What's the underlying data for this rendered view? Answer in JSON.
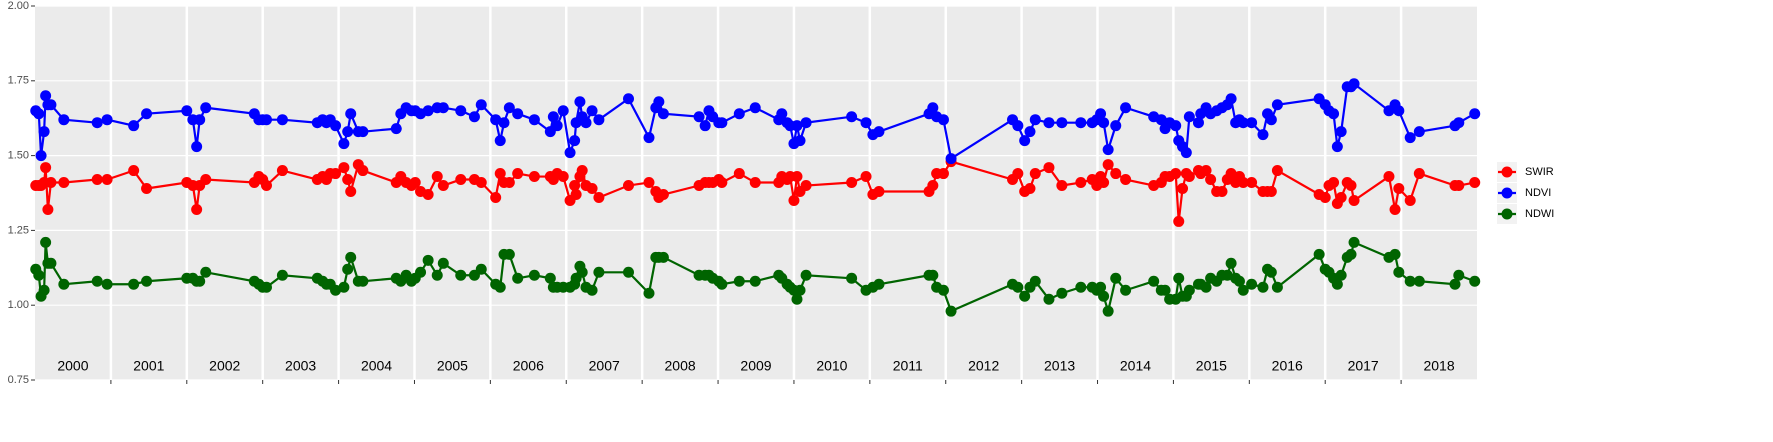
{
  "chart_data": {
    "type": "line",
    "x": [
      2000.01,
      2000.05,
      2000.08,
      2000.12,
      2000.14,
      2000.17,
      2000.21,
      2000.38,
      2000.82,
      2000.95,
      2001.3,
      2001.47,
      2002.0,
      2002.08,
      2002.13,
      2002.17,
      2002.25,
      2002.89,
      2002.95,
      2003.0,
      2003.05,
      2003.26,
      2003.72,
      2003.79,
      2003.84,
      2003.89,
      2003.96,
      2004.07,
      2004.12,
      2004.16,
      2004.26,
      2004.32,
      2004.76,
      2004.82,
      2004.89,
      2004.96,
      2005.01,
      2005.08,
      2005.18,
      2005.3,
      2005.38,
      2005.61,
      2005.79,
      2005.88,
      2006.07,
      2006.13,
      2006.18,
      2006.25,
      2006.36,
      2006.58,
      2006.79,
      2006.83,
      2006.88,
      2006.96,
      2007.05,
      2007.11,
      2007.13,
      2007.18,
      2007.21,
      2007.26,
      2007.34,
      2007.43,
      2007.82,
      2008.09,
      2008.18,
      2008.22,
      2008.28,
      2008.75,
      2008.83,
      2008.88,
      2008.93,
      2009.01,
      2009.05,
      2009.28,
      2009.49,
      2009.8,
      2009.84,
      2009.91,
      2009.95,
      2010.0,
      2010.04,
      2010.08,
      2010.16,
      2010.76,
      2010.95,
      2011.04,
      2011.12,
      2011.78,
      2011.83,
      2011.88,
      2011.97,
      2012.07,
      2012.88,
      2012.95,
      2013.04,
      2013.11,
      2013.18,
      2013.36,
      2013.53,
      2013.78,
      2013.93,
      2013.99,
      2014.04,
      2014.08,
      2014.14,
      2014.24,
      2014.37,
      2014.74,
      2014.84,
      2014.89,
      2014.95,
      2015.03,
      2015.07,
      2015.12,
      2015.17,
      2015.21,
      2015.33,
      2015.36,
      2015.43,
      2015.49,
      2015.57,
      2015.64,
      2015.71,
      2015.76,
      2015.82,
      2015.87,
      2015.92,
      2016.03,
      2016.18,
      2016.24,
      2016.29,
      2016.37,
      2016.92,
      2017.0,
      2017.05,
      2017.11,
      2017.16,
      2017.21,
      2017.29,
      2017.34,
      2017.38,
      2017.84,
      2017.92,
      2017.97,
      2018.12,
      2018.24,
      2018.71,
      2018.76,
      2018.97
    ],
    "series": [
      {
        "name": "SWIR",
        "color": "#ff0000",
        "values": [
          1.4,
          1.4,
          1.4,
          1.41,
          1.46,
          1.32,
          1.41,
          1.41,
          1.42,
          1.42,
          1.45,
          1.39,
          1.41,
          1.4,
          1.32,
          1.4,
          1.42,
          1.41,
          1.43,
          1.42,
          1.4,
          1.45,
          1.42,
          1.43,
          1.42,
          1.44,
          1.44,
          1.46,
          1.42,
          1.38,
          1.47,
          1.45,
          1.41,
          1.43,
          1.41,
          1.4,
          1.41,
          1.38,
          1.37,
          1.43,
          1.4,
          1.42,
          1.42,
          1.41,
          1.36,
          1.44,
          1.41,
          1.41,
          1.44,
          1.43,
          1.43,
          1.42,
          1.44,
          1.43,
          1.35,
          1.4,
          1.37,
          1.43,
          1.45,
          1.4,
          1.39,
          1.36,
          1.4,
          1.41,
          1.38,
          1.36,
          1.37,
          1.4,
          1.41,
          1.41,
          1.41,
          1.42,
          1.41,
          1.44,
          1.41,
          1.41,
          1.43,
          1.42,
          1.43,
          1.35,
          1.43,
          1.38,
          1.4,
          1.41,
          1.43,
          1.37,
          1.38,
          1.38,
          1.4,
          1.44,
          1.44,
          1.48,
          1.42,
          1.44,
          1.38,
          1.39,
          1.44,
          1.46,
          1.4,
          1.41,
          1.42,
          1.4,
          1.43,
          1.41,
          1.47,
          1.44,
          1.42,
          1.4,
          1.41,
          1.43,
          1.43,
          1.44,
          1.28,
          1.39,
          1.44,
          1.43,
          1.45,
          1.44,
          1.45,
          1.42,
          1.38,
          1.38,
          1.42,
          1.44,
          1.41,
          1.43,
          1.41,
          1.41,
          1.38,
          1.38,
          1.38,
          1.45,
          1.37,
          1.36,
          1.4,
          1.41,
          1.34,
          1.36,
          1.41,
          1.4,
          1.35,
          1.43,
          1.32,
          1.39,
          1.35,
          1.44,
          1.4,
          1.4,
          1.41
        ]
      },
      {
        "name": "NDVI",
        "color": "#0000ff",
        "values": [
          1.65,
          1.64,
          1.5,
          1.58,
          1.7,
          1.67,
          1.67,
          1.62,
          1.61,
          1.62,
          1.6,
          1.64,
          1.65,
          1.62,
          1.53,
          1.62,
          1.66,
          1.64,
          1.62,
          1.62,
          1.62,
          1.62,
          1.61,
          1.62,
          1.61,
          1.62,
          1.6,
          1.54,
          1.58,
          1.64,
          1.58,
          1.58,
          1.59,
          1.64,
          1.66,
          1.65,
          1.65,
          1.64,
          1.65,
          1.66,
          1.66,
          1.65,
          1.63,
          1.67,
          1.62,
          1.55,
          1.61,
          1.66,
          1.64,
          1.62,
          1.58,
          1.63,
          1.6,
          1.65,
          1.51,
          1.55,
          1.61,
          1.68,
          1.63,
          1.61,
          1.65,
          1.62,
          1.69,
          1.56,
          1.66,
          1.68,
          1.64,
          1.63,
          1.6,
          1.65,
          1.63,
          1.61,
          1.61,
          1.64,
          1.66,
          1.62,
          1.64,
          1.61,
          1.6,
          1.54,
          1.6,
          1.55,
          1.61,
          1.63,
          1.61,
          1.57,
          1.58,
          1.64,
          1.66,
          1.63,
          1.62,
          1.49,
          1.62,
          1.6,
          1.55,
          1.58,
          1.62,
          1.61,
          1.61,
          1.61,
          1.61,
          1.62,
          1.64,
          1.61,
          1.52,
          1.6,
          1.66,
          1.63,
          1.62,
          1.59,
          1.61,
          1.6,
          1.55,
          1.53,
          1.51,
          1.63,
          1.61,
          1.64,
          1.66,
          1.64,
          1.65,
          1.66,
          1.67,
          1.69,
          1.61,
          1.62,
          1.61,
          1.61,
          1.57,
          1.64,
          1.62,
          1.67,
          1.69,
          1.67,
          1.65,
          1.64,
          1.53,
          1.58,
          1.73,
          1.73,
          1.74,
          1.65,
          1.67,
          1.65,
          1.56,
          1.58,
          1.6,
          1.61,
          1.64
        ]
      },
      {
        "name": "NDWI",
        "color": "#006400",
        "values": [
          1.12,
          1.1,
          1.03,
          1.05,
          1.21,
          1.14,
          1.14,
          1.07,
          1.08,
          1.07,
          1.07,
          1.08,
          1.09,
          1.09,
          1.08,
          1.08,
          1.11,
          1.08,
          1.07,
          1.06,
          1.06,
          1.1,
          1.09,
          1.08,
          1.07,
          1.07,
          1.05,
          1.06,
          1.12,
          1.16,
          1.08,
          1.08,
          1.09,
          1.08,
          1.1,
          1.08,
          1.09,
          1.11,
          1.15,
          1.1,
          1.14,
          1.1,
          1.1,
          1.12,
          1.07,
          1.06,
          1.17,
          1.17,
          1.09,
          1.1,
          1.09,
          1.06,
          1.06,
          1.06,
          1.06,
          1.07,
          1.09,
          1.13,
          1.11,
          1.06,
          1.05,
          1.11,
          1.11,
          1.04,
          1.16,
          1.16,
          1.16,
          1.1,
          1.1,
          1.1,
          1.09,
          1.08,
          1.07,
          1.08,
          1.08,
          1.1,
          1.09,
          1.07,
          1.06,
          1.05,
          1.02,
          1.05,
          1.1,
          1.09,
          1.05,
          1.06,
          1.07,
          1.1,
          1.1,
          1.06,
          1.05,
          0.98,
          1.07,
          1.06,
          1.03,
          1.06,
          1.08,
          1.02,
          1.04,
          1.06,
          1.06,
          1.05,
          1.06,
          1.03,
          0.98,
          1.09,
          1.05,
          1.08,
          1.05,
          1.05,
          1.02,
          1.02,
          1.09,
          1.03,
          1.03,
          1.05,
          1.07,
          1.07,
          1.06,
          1.09,
          1.08,
          1.1,
          1.1,
          1.14,
          1.09,
          1.08,
          1.05,
          1.07,
          1.06,
          1.12,
          1.11,
          1.06,
          1.17,
          1.12,
          1.11,
          1.09,
          1.07,
          1.1,
          1.16,
          1.17,
          1.21,
          1.16,
          1.17,
          1.11,
          1.08,
          1.08,
          1.07,
          1.1,
          1.08
        ]
      }
    ],
    "xlim": [
      2000,
      2019
    ],
    "xticks": [
      {
        "value": 2000.5,
        "label": "2000"
      },
      {
        "value": 2001.5,
        "label": "2001"
      },
      {
        "value": 2002.5,
        "label": "2002"
      },
      {
        "value": 2003.5,
        "label": "2003"
      },
      {
        "value": 2004.5,
        "label": "2004"
      },
      {
        "value": 2005.5,
        "label": "2005"
      },
      {
        "value": 2006.5,
        "label": "2006"
      },
      {
        "value": 2007.5,
        "label": "2007"
      },
      {
        "value": 2008.5,
        "label": "2008"
      },
      {
        "value": 2009.5,
        "label": "2009"
      },
      {
        "value": 2010.5,
        "label": "2010"
      },
      {
        "value": 2011.5,
        "label": "2011"
      },
      {
        "value": 2012.5,
        "label": "2012"
      },
      {
        "value": 2013.5,
        "label": "2013"
      },
      {
        "value": 2014.5,
        "label": "2014"
      },
      {
        "value": 2015.5,
        "label": "2015"
      },
      {
        "value": 2016.5,
        "label": "2016"
      },
      {
        "value": 2017.5,
        "label": "2017"
      },
      {
        "value": 2018.5,
        "label": "2018"
      }
    ],
    "xgrid": [
      2001,
      2002,
      2003,
      2004,
      2005,
      2006,
      2007,
      2008,
      2009,
      2010,
      2011,
      2012,
      2013,
      2014,
      2015,
      2016,
      2017,
      2018
    ],
    "ylim": [
      0.75,
      2.0
    ],
    "yticks": [
      {
        "value": 0.75,
        "label": "0.75"
      },
      {
        "value": 1.0,
        "label": "1.00"
      },
      {
        "value": 1.25,
        "label": "1.25"
      },
      {
        "value": 1.5,
        "label": "1.50"
      },
      {
        "value": 1.75,
        "label": "1.75"
      },
      {
        "value": 2.0,
        "label": "2.00"
      }
    ],
    "grid": true,
    "legend": "right"
  }
}
